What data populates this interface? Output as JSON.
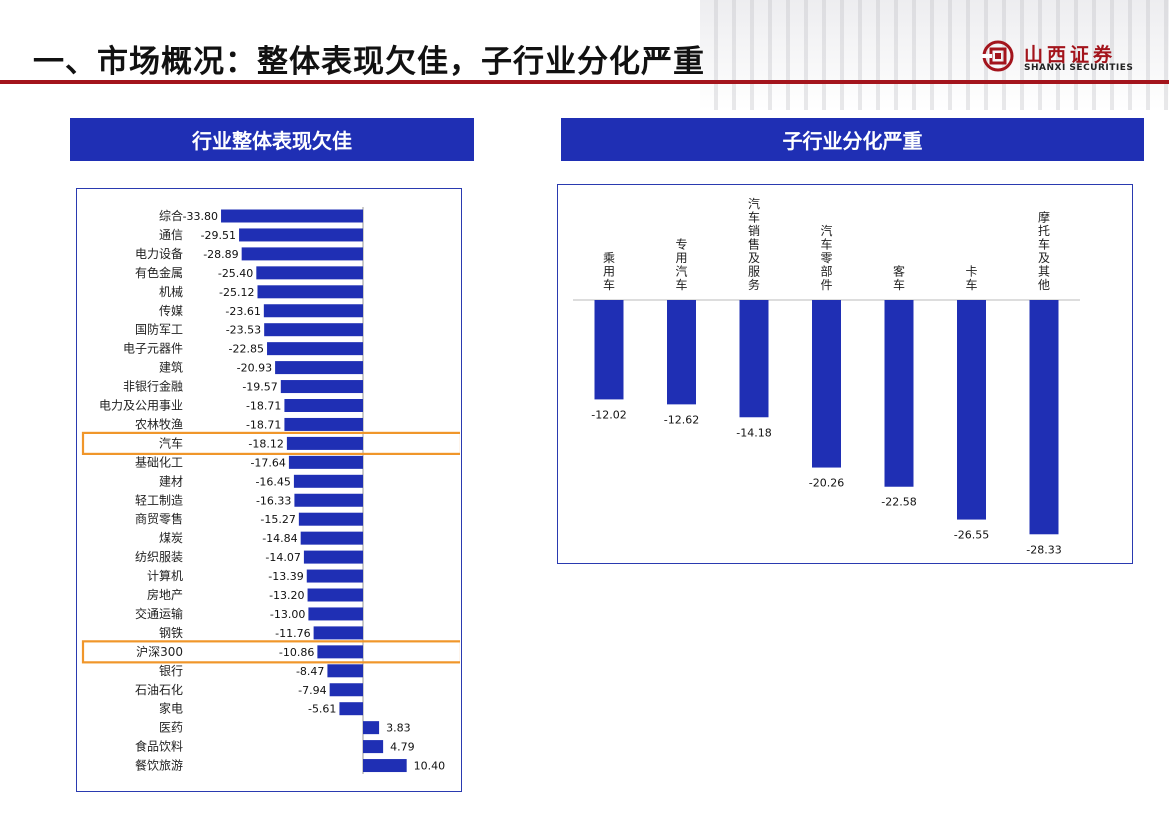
{
  "page": {
    "title": "一、市场概况：整体表现欠佳，子行业分化严重",
    "logo_cn": "山西证券",
    "logo_en": "SHANXI SECURITIES"
  },
  "colors": {
    "bar": "#1f2fb4",
    "highlight": "#f0962a",
    "accent": "#a3141c"
  },
  "chart_data": [
    {
      "type": "bar",
      "orientation": "horizontal",
      "title": "行业整体表现欠佳",
      "unit": "%",
      "categories": [
        "综合",
        "通信",
        "电力设备",
        "有色金属",
        "机械",
        "传媒",
        "国防军工",
        "电子元器件",
        "建筑",
        "非银行金融",
        "电力及公用事业",
        "农林牧渔",
        "汽车",
        "基础化工",
        "建材",
        "轻工制造",
        "商贸零售",
        "煤炭",
        "纺织服装",
        "计算机",
        "房地产",
        "交通运输",
        "钢铁",
        "沪深300",
        "银行",
        "石油石化",
        "家电",
        "医药",
        "食品饮料",
        "餐饮旅游"
      ],
      "values": [
        -33.8,
        -29.51,
        -28.89,
        -25.4,
        -25.12,
        -23.61,
        -23.53,
        -22.85,
        -20.93,
        -19.57,
        -18.71,
        -18.71,
        -18.12,
        -17.64,
        -16.45,
        -16.33,
        -15.27,
        -14.84,
        -14.07,
        -13.39,
        -13.2,
        -13.0,
        -11.76,
        -10.86,
        -8.47,
        -7.94,
        -5.61,
        3.83,
        4.79,
        10.4
      ],
      "value_labels": [
        "-33.80",
        "-29.51",
        "-28.89",
        "-25.40",
        "-25.12",
        "-23.61",
        "-23.53",
        "-22.85",
        "-20.93",
        "-19.57",
        "-18.71",
        "-18.71",
        "-18.12",
        "-17.64",
        "-16.45",
        "-16.33",
        "-15.27",
        "-14.84",
        "-14.07",
        "-13.39",
        "-13.20",
        "-13.00",
        "-11.76",
        "-10.86",
        "-8.47",
        "-7.94",
        "-5.61",
        "3.83",
        "4.79",
        "10.40"
      ],
      "highlighted": [
        "汽车",
        "沪深300"
      ],
      "xlim": [
        -35,
        12
      ]
    },
    {
      "type": "bar",
      "orientation": "vertical",
      "title": "子行业分化严重",
      "unit": "%",
      "categories": [
        "乘用车",
        "专用汽车",
        "汽车销售及服务",
        "汽车零部件",
        "客车",
        "卡车",
        "摩托车及其他"
      ],
      "values": [
        -12.02,
        -12.62,
        -14.18,
        -20.26,
        -22.58,
        -26.55,
        -28.33
      ],
      "value_labels": [
        "-12.02",
        "-12.62",
        "-14.18",
        "-20.26",
        "-22.58",
        "-26.55",
        "-28.33"
      ],
      "ylim": [
        -30,
        0
      ]
    }
  ]
}
